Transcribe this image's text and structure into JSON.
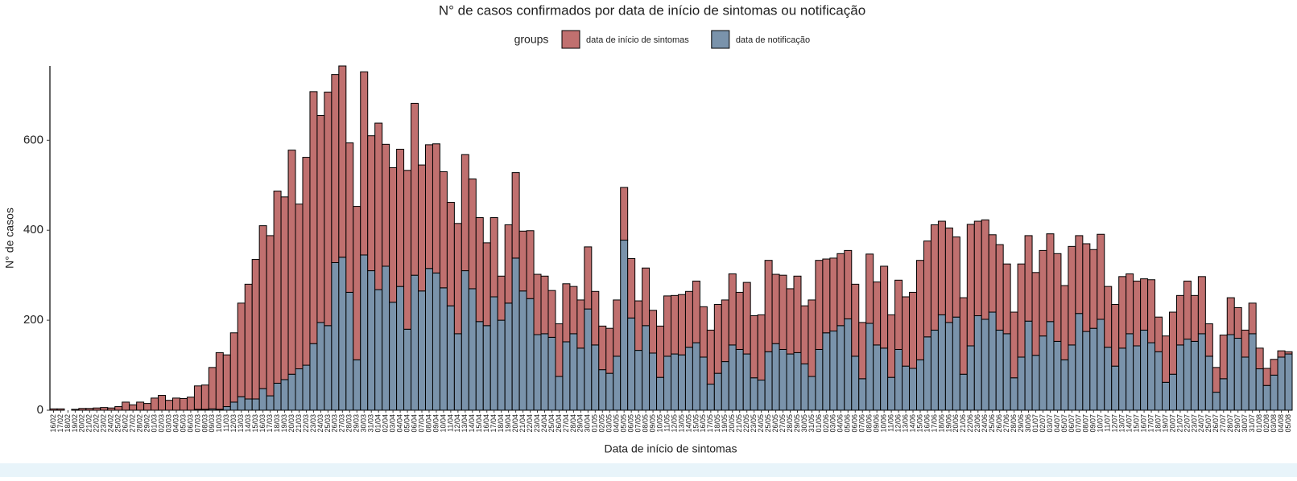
{
  "chart_data": {
    "type": "stacked_bar",
    "title": "N° de casos confirmados por data de início de sintomas ou notificação",
    "legend_title": "groups",
    "x_label": "Data de início de sintomas",
    "y_label": "N° de casos",
    "categories": [
      "16/02",
      "17/02",
      "18/02",
      "19/02",
      "20/02",
      "21/02",
      "22/02",
      "23/02",
      "24/02",
      "25/02",
      "26/02",
      "27/02",
      "28/02",
      "29/02",
      "01/03",
      "02/03",
      "03/03",
      "04/03",
      "05/03",
      "06/03",
      "07/03",
      "08/03",
      "09/03",
      "10/03",
      "11/03",
      "12/03",
      "13/03",
      "14/03",
      "15/03",
      "16/03",
      "17/03",
      "18/03",
      "19/03",
      "20/03",
      "21/03",
      "22/03",
      "23/03",
      "24/03",
      "25/03",
      "26/03",
      "27/03",
      "28/03",
      "29/03",
      "30/03",
      "31/03",
      "01/04",
      "02/04",
      "03/04",
      "04/04",
      "05/04",
      "06/04",
      "07/04",
      "08/04",
      "09/04",
      "10/04",
      "11/04",
      "12/04",
      "13/04",
      "14/04",
      "15/04",
      "16/04",
      "17/04",
      "18/04",
      "19/04",
      "20/04",
      "21/04",
      "22/04",
      "23/04",
      "24/04",
      "25/04",
      "26/04",
      "27/04",
      "28/04",
      "29/04",
      "30/04",
      "01/05",
      "02/05",
      "03/05",
      "04/05",
      "05/05",
      "06/05",
      "07/05",
      "08/05",
      "09/05",
      "10/05",
      "11/05",
      "12/05",
      "13/05",
      "14/05",
      "15/05",
      "16/05",
      "17/05",
      "18/05",
      "19/05",
      "20/05",
      "21/05",
      "22/05",
      "23/05",
      "24/05",
      "25/05",
      "26/05",
      "27/05",
      "28/05",
      "29/05",
      "30/05",
      "31/05",
      "01/06",
      "02/06",
      "03/06",
      "04/06",
      "05/06",
      "06/06",
      "07/06",
      "08/06",
      "09/06",
      "10/06",
      "11/06",
      "12/06",
      "13/06",
      "14/06",
      "15/06",
      "16/06",
      "17/06",
      "18/06",
      "19/06",
      "20/06",
      "21/06",
      "22/06",
      "23/06",
      "24/06",
      "25/06",
      "26/06",
      "27/06",
      "28/06",
      "29/06",
      "30/06",
      "01/07",
      "02/07",
      "03/07",
      "04/07",
      "05/07",
      "06/07",
      "07/07",
      "08/07",
      "09/07",
      "10/07",
      "11/07",
      "12/07",
      "13/07",
      "14/07",
      "15/07",
      "16/07",
      "17/07",
      "18/07",
      "19/07",
      "20/07",
      "21/07",
      "22/07",
      "23/07",
      "24/07",
      "25/07",
      "26/07",
      "27/07",
      "28/07",
      "29/07",
      "30/07",
      "31/07",
      "01/08",
      "02/08",
      "03/08",
      "04/08",
      "05/08"
    ],
    "series": [
      {
        "name": "data de início de sintomas",
        "color": "#c0706f",
        "values": [
          3,
          3,
          0,
          2,
          4,
          4,
          5,
          6,
          5,
          8,
          18,
          12,
          18,
          15,
          27,
          33,
          22,
          27,
          26,
          29,
          52,
          54,
          92,
          126,
          115,
          154,
          208,
          255,
          310,
          362,
          356,
          427,
          406,
          498,
          366,
          462,
          560,
          460,
          519,
          418,
          425,
          332,
          341,
          407,
          300,
          370,
          271,
          299,
          305,
          353,
          382,
          280,
          275,
          287,
          258,
          230,
          245,
          258,
          244,
          231,
          184,
          176,
          98,
          174,
          190,
          133,
          151,
          134,
          128,
          104,
          117,
          129,
          105,
          107,
          138,
          119,
          97,
          100,
          125,
          117,
          132,
          110,
          128,
          95,
          114,
          134,
          130,
          134,
          124,
          137,
          112,
          120,
          153,
          137,
          158,
          127,
          159,
          138,
          145,
          203,
          154,
          165,
          145,
          170,
          129,
          170,
          198,
          164,
          162,
          160,
          152,
          160,
          125,
          154,
          140,
          182,
          139,
          154,
          154,
          169,
          221,
          213,
          234,
          208,
          210,
          178,
          170,
          270,
          210,
          221,
          172,
          190,
          155,
          146,
          207,
          190,
          184,
          190,
          195,
          195,
          165,
          219,
          173,
          195,
          175,
          189,
          135,
          137,
          159,
          133,
          144,
          114,
          140,
          77,
          103,
          138,
          110,
          129,
          102,
          127,
          72,
          55,
          97,
          82,
          68,
          60,
          68,
          46,
          38,
          35,
          14,
          5
        ]
      },
      {
        "name": "data de notificação",
        "color": "#7a93ab",
        "values": [
          0,
          0,
          0,
          0,
          0,
          0,
          0,
          0,
          0,
          0,
          0,
          0,
          0,
          0,
          0,
          0,
          0,
          0,
          0,
          0,
          2,
          2,
          3,
          2,
          8,
          18,
          30,
          25,
          25,
          48,
          32,
          60,
          68,
          80,
          92,
          100,
          148,
          195,
          188,
          328,
          340,
          262,
          112,
          345,
          310,
          268,
          320,
          240,
          275,
          180,
          300,
          265,
          315,
          305,
          272,
          232,
          170,
          310,
          270,
          197,
          188,
          252,
          200,
          238,
          338,
          265,
          248,
          168,
          170,
          162,
          75,
          152,
          170,
          138,
          225,
          145,
          90,
          82,
          120,
          378,
          205,
          133,
          188,
          127,
          73,
          120,
          125,
          123,
          140,
          150,
          118,
          58,
          82,
          108,
          145,
          135,
          125,
          72,
          67,
          130,
          148,
          135,
          125,
          128,
          103,
          75,
          135,
          172,
          176,
          188,
          203,
          120,
          70,
          193,
          145,
          138,
          73,
          135,
          98,
          93,
          112,
          163,
          178,
          212,
          195,
          207,
          80,
          143,
          210,
          202,
          218,
          178,
          170,
          72,
          118,
          198,
          122,
          165,
          197,
          153,
          112,
          145,
          215,
          175,
          182,
          202,
          140,
          98,
          138,
          170,
          143,
          178,
          150,
          130,
          62,
          80,
          145,
          158,
          153,
          170,
          120,
          40,
          70,
          168,
          160,
          118,
          170,
          92,
          55,
          78,
          118,
          125
        ]
      }
    ],
    "ylim": [
      0,
      765
    ],
    "yticks": [
      0,
      200,
      400,
      600
    ]
  }
}
